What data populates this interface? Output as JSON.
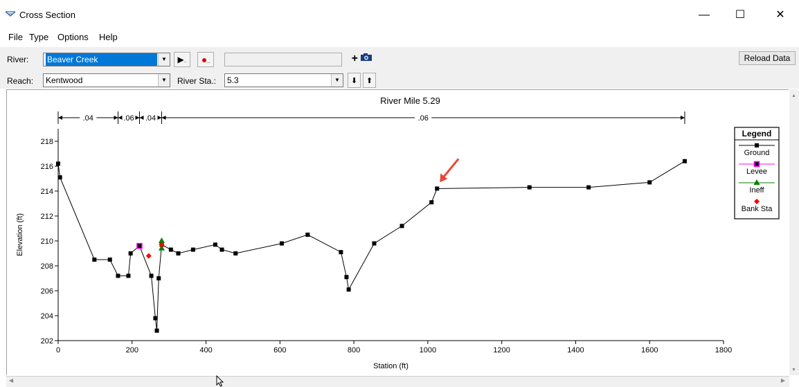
{
  "window": {
    "title": "Cross Section",
    "minimize": "—",
    "maximize": "☐",
    "close": "✕"
  },
  "menu": [
    "File",
    "Type",
    "Options",
    "Help"
  ],
  "toolbar": {
    "river_label": "River:",
    "river_value": "Beaver Creek",
    "reach_label": "Reach:",
    "reach_value": "Kentwood",
    "station_label": "River Sta.:",
    "station_value": "5.3",
    "reload_label": "Reload Data",
    "down_label": "⬇",
    "up_label": "⬆",
    "plus_label": "+"
  },
  "icons": [
    "cross-section-icon",
    "play-icon",
    "record-icon",
    "camera-icon",
    "down-arrow-icon",
    "up-arrow-icon",
    "dropdown-arrow-icon"
  ],
  "chart_data": {
    "type": "line",
    "title": "River Mile 5.29",
    "xlabel": "Station (ft)",
    "ylabel": "Elevation (ft)",
    "xlim": [
      0,
      1800
    ],
    "ylim": [
      202,
      219
    ],
    "x_ticks": [
      0,
      200,
      400,
      600,
      800,
      1000,
      1200,
      1400,
      1600,
      1800
    ],
    "y_ticks": [
      202,
      204,
      206,
      208,
      210,
      212,
      214,
      216,
      218
    ],
    "grid": false,
    "legend_title": "Legend",
    "legend_position": "right",
    "series": [
      {
        "name": "Ground",
        "color": "#000000",
        "marker": "square",
        "points": [
          [
            0,
            216.2
          ],
          [
            5,
            215.1
          ],
          [
            98,
            208.5
          ],
          [
            140,
            208.5
          ],
          [
            162,
            207.2
          ],
          [
            190,
            207.2
          ],
          [
            196,
            209.0
          ],
          [
            220,
            209.6
          ],
          [
            252,
            207.2
          ],
          [
            263,
            203.8
          ],
          [
            267,
            202.8
          ],
          [
            272,
            207.0
          ],
          [
            280,
            209.7
          ],
          [
            305,
            209.3
          ],
          [
            325,
            209.0
          ],
          [
            365,
            209.3
          ],
          [
            425,
            209.7
          ],
          [
            443,
            209.3
          ],
          [
            480,
            209.0
          ],
          [
            605,
            209.8
          ],
          [
            675,
            210.5
          ],
          [
            765,
            209.1
          ],
          [
            780,
            207.1
          ],
          [
            786,
            206.1
          ],
          [
            855,
            209.8
          ],
          [
            930,
            211.2
          ],
          [
            1010,
            213.1
          ],
          [
            1025,
            214.2
          ],
          [
            1275,
            214.3
          ],
          [
            1435,
            214.3
          ],
          [
            1600,
            214.7
          ],
          [
            1695,
            216.4
          ]
        ]
      },
      {
        "name": "Levee",
        "color": "#ff00ff",
        "marker": "open-square",
        "points": [
          [
            220,
            209.6
          ]
        ]
      },
      {
        "name": "Ineff",
        "color": "#008000",
        "marker": "triangle",
        "points": [
          [
            280,
            210.0
          ],
          [
            280,
            209.4
          ]
        ]
      },
      {
        "name": "Bank Sta",
        "color": "#ff0000",
        "marker": "diamond",
        "points": [
          [
            245,
            208.8
          ],
          [
            280,
            209.7
          ]
        ]
      }
    ],
    "manning_regions": [
      {
        "from": 0,
        "to": 162,
        "label": ".04"
      },
      {
        "from": 162,
        "to": 220,
        "label": ".06"
      },
      {
        "from": 220,
        "to": 280,
        "label": ".04"
      },
      {
        "from": 280,
        "to": 1695,
        "label": ".06"
      }
    ],
    "annotations": [
      {
        "type": "arrow",
        "color": "#e8473c",
        "points_to": [
          1025,
          214.2
        ]
      }
    ]
  }
}
